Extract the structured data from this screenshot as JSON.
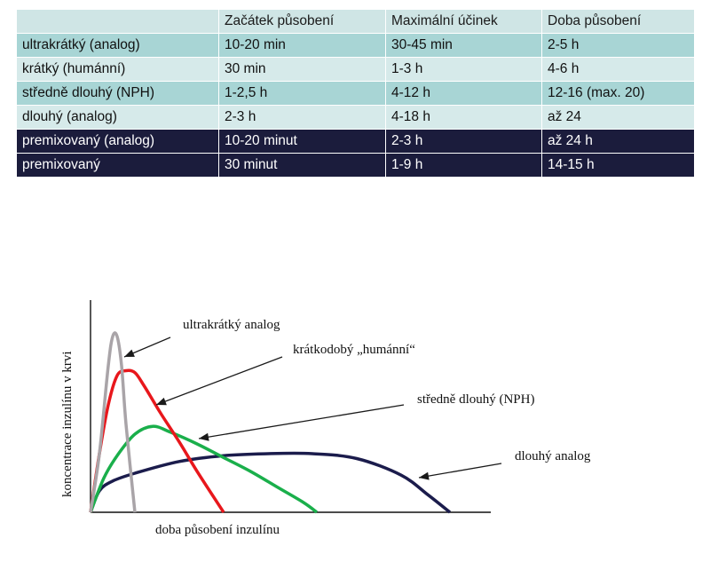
{
  "table": {
    "headers": [
      "",
      "Začátek působení",
      "Maximální účinek",
      "Doba působení"
    ],
    "rows": [
      {
        "type": "ultrakrátký  (analog)",
        "onset": "10-20  min",
        "peak": "30-45  min",
        "duration": "2-5 h",
        "style": "teal"
      },
      {
        "type": "krátký  (humánní)",
        "onset": "30 min",
        "peak": "1-3 h",
        "duration": "4-6 h",
        "style": "light"
      },
      {
        "type": "středně dlouhý (NPH)",
        "onset": "1-2,5 h",
        "peak": "4-12 h",
        "duration": "12-16  (max. 20)",
        "style": "teal"
      },
      {
        "type": "dlouhý (analog)",
        "onset": "2-3 h",
        "peak": "4-18 h",
        "duration": "až 24",
        "style": "light"
      },
      {
        "type": "premixovaný (analog)",
        "onset": "10-20 minut",
        "peak": "2-3 h",
        "duration": "až 24 h",
        "style": "dark"
      },
      {
        "type": "premixovaný",
        "onset": "30 minut",
        "peak": "1-9 h",
        "duration": "14-15 h",
        "style": "dark"
      }
    ]
  },
  "chart_data": {
    "type": "line",
    "title": "",
    "xlabel": "doba působení inzulínu",
    "ylabel": "koncentrace inzulínu v krvi",
    "series": [
      {
        "name": "ultrakrátký analog",
        "color": "#a9a4a8",
        "x": [
          0,
          10,
          20,
          25,
          30,
          35,
          40,
          50
        ],
        "y": [
          0,
          60,
          150,
          180,
          180,
          150,
          90,
          0
        ]
      },
      {
        "name": "krátkodobý „humánní“",
        "color": "#e8171c",
        "x": [
          0,
          10,
          20,
          30,
          40,
          50,
          60,
          70,
          80,
          100,
          120,
          150
        ],
        "y": [
          0,
          60,
          110,
          140,
          145,
          143,
          130,
          115,
          100,
          72,
          42,
          0
        ]
      },
      {
        "name": "středně dlouhý (NPH)",
        "color": "#1aaf4b",
        "x": [
          0,
          15,
          30,
          50,
          70,
          90,
          120,
          150,
          180,
          210,
          240,
          255
        ],
        "y": [
          0,
          35,
          58,
          80,
          88,
          82,
          70,
          56,
          42,
          26,
          10,
          0
        ]
      },
      {
        "name": "dlouhý analog",
        "color": "#1b1c4c",
        "x": [
          0,
          10,
          25,
          50,
          100,
          150,
          200,
          250,
          300,
          350,
          380,
          405
        ],
        "y": [
          0,
          22,
          32,
          40,
          52,
          58,
          60,
          60,
          55,
          38,
          18,
          0
        ]
      }
    ],
    "grid": false,
    "legend": "annotations"
  }
}
